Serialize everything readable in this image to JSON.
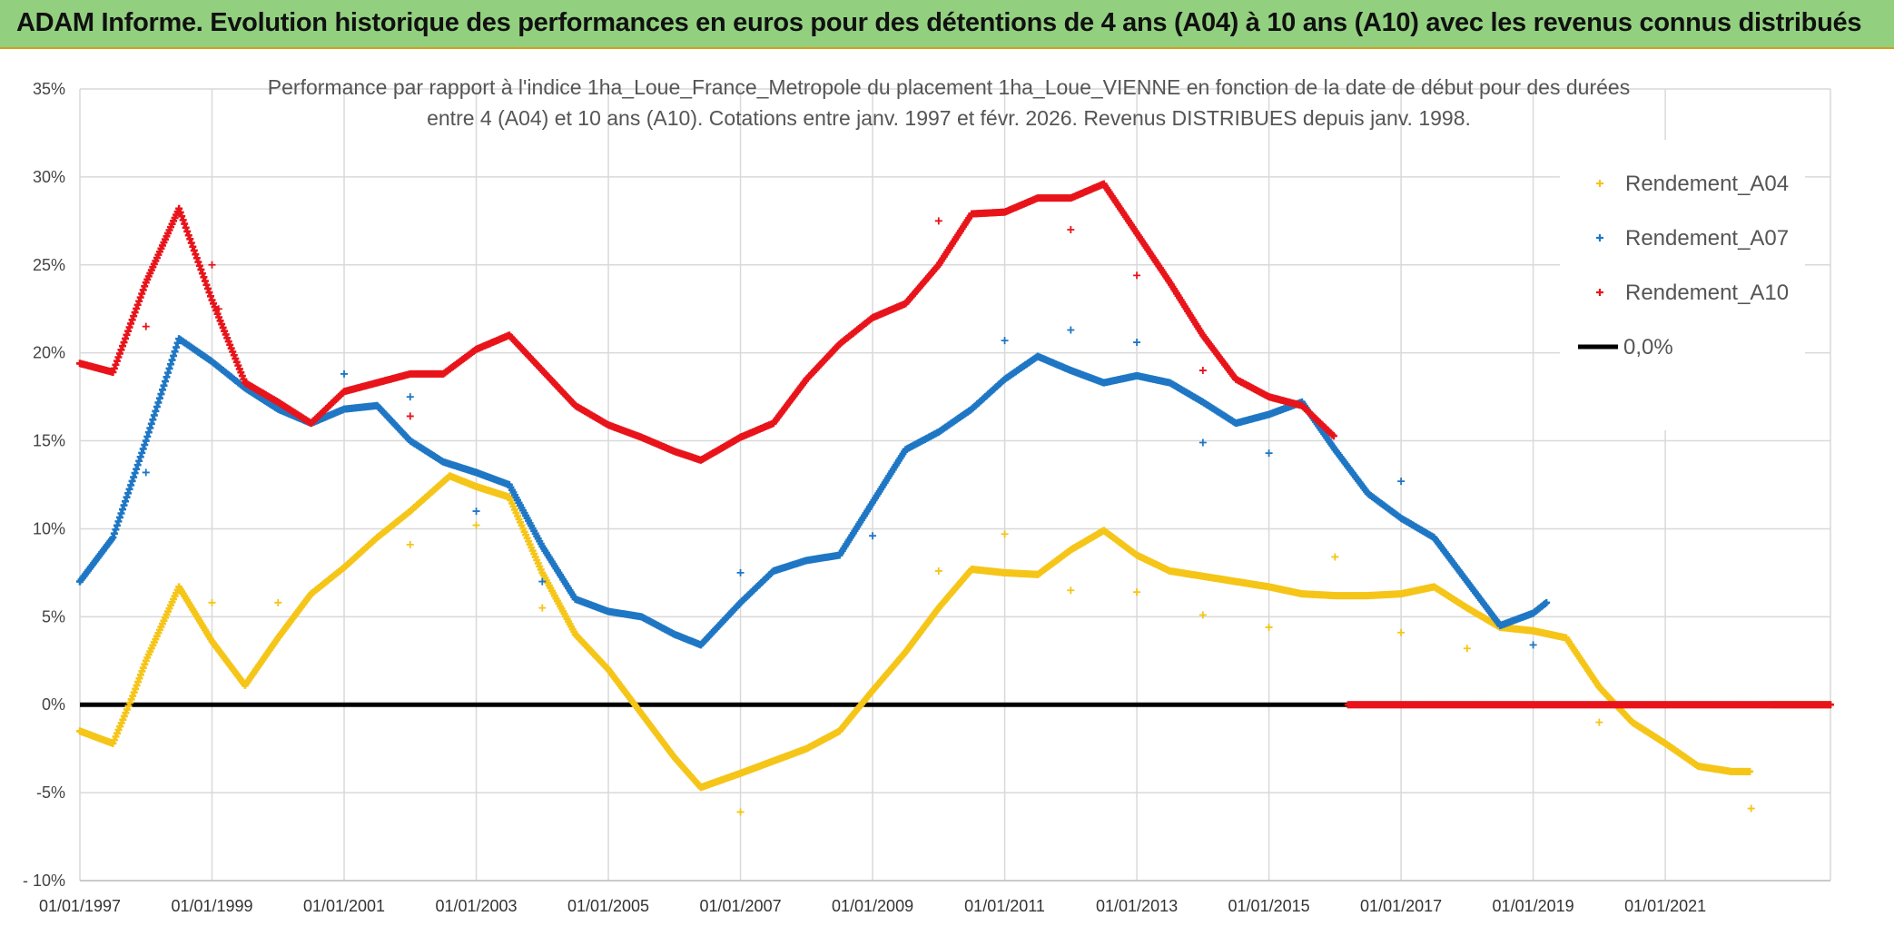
{
  "banner": {
    "title": "ADAM Informe. Evolution historique des performances en euros pour des détentions de 4 ans (A04) à 10 ans (A10) avec les revenus connus distribués"
  },
  "chart_data": {
    "type": "scatter",
    "title_line1": "Performance par rapport à l'indice 1ha_Loue_France_Metropole  du placement 1ha_Loue_VIENNE en fonction de la date de début pour des durées",
    "title_line2": "entre 4 (A04) et 10 ans (A10). Cotations entre janv. 1997 et févr. 2026. Revenus DISTRIBUES depuis janv. 1998.",
    "xlabel": "",
    "ylabel": "",
    "xlim": [
      1997.0,
      2023.5
    ],
    "ylim": [
      -10,
      35
    ],
    "y_ticks": [
      -10,
      -5,
      0,
      5,
      10,
      15,
      20,
      25,
      30,
      35
    ],
    "y_tick_labels": [
      "- 10%",
      "-5%",
      "0%",
      "5%",
      "10%",
      "15%",
      "20%",
      "25%",
      "30%",
      "35%"
    ],
    "x_ticks": [
      1997,
      1999,
      2001,
      2003,
      2005,
      2007,
      2009,
      2011,
      2013,
      2015,
      2017,
      2019,
      2021
    ],
    "x_tick_labels": [
      "01/01/1997",
      "01/01/1999",
      "01/01/2001",
      "01/01/2003",
      "01/01/2005",
      "01/01/2007",
      "01/01/2009",
      "01/01/2011",
      "01/01/2013",
      "01/01/2015",
      "01/01/2017",
      "01/01/2019",
      "01/01/2021"
    ],
    "legend_position": "top-right",
    "series": [
      {
        "name": "Rendement_A04",
        "color": "#f5c518",
        "marker": "plus",
        "points": [
          [
            1997.0,
            -1.5
          ],
          [
            1997.5,
            -2.2
          ],
          [
            1997.8,
            0.5
          ],
          [
            1998.0,
            2.5
          ],
          [
            1998.5,
            6.7
          ],
          [
            1999.0,
            3.6
          ],
          [
            1999.5,
            1.1
          ],
          [
            2000.0,
            3.8
          ],
          [
            2000.5,
            6.3
          ],
          [
            2001.0,
            7.8
          ],
          [
            2001.5,
            9.5
          ],
          [
            2002.0,
            11.0
          ],
          [
            2002.6,
            13.0
          ],
          [
            2003.0,
            12.4
          ],
          [
            2003.5,
            11.8
          ],
          [
            2004.0,
            7.5
          ],
          [
            2004.5,
            4.0
          ],
          [
            2005.0,
            2.0
          ],
          [
            2005.5,
            -0.5
          ],
          [
            2006.0,
            -3.0
          ],
          [
            2006.4,
            -4.7
          ],
          [
            2007.0,
            -3.9
          ],
          [
            2007.5,
            -3.2
          ],
          [
            2008.0,
            -2.5
          ],
          [
            2008.5,
            -1.5
          ],
          [
            2009.0,
            0.8
          ],
          [
            2009.5,
            3.0
          ],
          [
            2010.0,
            5.5
          ],
          [
            2010.5,
            7.7
          ],
          [
            2011.0,
            7.5
          ],
          [
            2011.5,
            7.4
          ],
          [
            2012.0,
            8.8
          ],
          [
            2012.5,
            9.9
          ],
          [
            2013.0,
            8.5
          ],
          [
            2013.5,
            7.6
          ],
          [
            2014.0,
            7.3
          ],
          [
            2014.5,
            7.0
          ],
          [
            2015.0,
            6.7
          ],
          [
            2015.5,
            6.3
          ],
          [
            2016.0,
            6.2
          ],
          [
            2016.5,
            6.2
          ],
          [
            2017.0,
            6.3
          ],
          [
            2017.5,
            6.7
          ],
          [
            2018.0,
            5.5
          ],
          [
            2018.5,
            4.4
          ],
          [
            2019.0,
            4.2
          ],
          [
            2019.5,
            3.8
          ],
          [
            2020.0,
            1.0
          ],
          [
            2020.5,
            -1.0
          ],
          [
            2021.0,
            -2.2
          ],
          [
            2021.5,
            -3.5
          ],
          [
            2022.0,
            -3.8
          ],
          [
            2022.3,
            -3.8
          ],
          [
            2022.6,
            0.0
          ],
          [
            2023.0,
            0.0
          ],
          [
            2023.5,
            0.0
          ]
        ]
      },
      {
        "name": "Rendement_A07",
        "color": "#1f77c4",
        "marker": "plus",
        "points": [
          [
            1997.0,
            7.0
          ],
          [
            1997.5,
            9.5
          ],
          [
            1998.0,
            15.0
          ],
          [
            1998.5,
            20.8
          ],
          [
            1999.0,
            19.5
          ],
          [
            1999.5,
            18.0
          ],
          [
            2000.0,
            16.8
          ],
          [
            2000.5,
            16.0
          ],
          [
            2001.0,
            16.8
          ],
          [
            2001.5,
            17.0
          ],
          [
            2002.0,
            15.0
          ],
          [
            2002.5,
            13.8
          ],
          [
            2003.0,
            13.2
          ],
          [
            2003.5,
            12.5
          ],
          [
            2004.0,
            9.0
          ],
          [
            2004.5,
            6.0
          ],
          [
            2005.0,
            5.3
          ],
          [
            2005.5,
            5.0
          ],
          [
            2006.0,
            4.0
          ],
          [
            2006.4,
            3.4
          ],
          [
            2007.0,
            5.8
          ],
          [
            2007.5,
            7.6
          ],
          [
            2008.0,
            8.2
          ],
          [
            2008.5,
            8.5
          ],
          [
            2009.0,
            11.5
          ],
          [
            2009.5,
            14.5
          ],
          [
            2010.0,
            15.5
          ],
          [
            2010.5,
            16.8
          ],
          [
            2011.0,
            18.5
          ],
          [
            2011.5,
            19.8
          ],
          [
            2012.0,
            19.0
          ],
          [
            2012.5,
            18.3
          ],
          [
            2013.0,
            18.7
          ],
          [
            2013.5,
            18.3
          ],
          [
            2014.0,
            17.2
          ],
          [
            2014.5,
            16.0
          ],
          [
            2015.0,
            16.5
          ],
          [
            2015.5,
            17.2
          ],
          [
            2016.0,
            14.5
          ],
          [
            2016.5,
            12.0
          ],
          [
            2017.0,
            10.6
          ],
          [
            2017.5,
            9.5
          ],
          [
            2018.0,
            7.0
          ],
          [
            2018.5,
            4.5
          ],
          [
            2019.0,
            5.2
          ],
          [
            2019.2,
            5.8
          ]
        ]
      },
      {
        "name": "Rendement_A10",
        "color": "#e8141b",
        "marker": "plus",
        "points": [
          [
            1997.0,
            19.4
          ],
          [
            1997.5,
            18.9
          ],
          [
            1998.0,
            24.0
          ],
          [
            1998.5,
            28.2
          ],
          [
            1999.0,
            23.0
          ],
          [
            1999.5,
            18.3
          ],
          [
            2000.0,
            17.2
          ],
          [
            2000.5,
            16.0
          ],
          [
            2001.0,
            17.8
          ],
          [
            2001.5,
            18.3
          ],
          [
            2002.0,
            18.8
          ],
          [
            2002.5,
            18.8
          ],
          [
            2003.0,
            20.2
          ],
          [
            2003.5,
            21.0
          ],
          [
            2004.0,
            19.0
          ],
          [
            2004.5,
            17.0
          ],
          [
            2005.0,
            15.9
          ],
          [
            2005.5,
            15.2
          ],
          [
            2006.0,
            14.4
          ],
          [
            2006.4,
            13.9
          ],
          [
            2007.0,
            15.2
          ],
          [
            2007.5,
            16.0
          ],
          [
            2008.0,
            18.5
          ],
          [
            2008.5,
            20.5
          ],
          [
            2009.0,
            22.0
          ],
          [
            2009.5,
            22.8
          ],
          [
            2010.0,
            25.0
          ],
          [
            2010.5,
            27.9
          ],
          [
            2011.0,
            28.0
          ],
          [
            2011.5,
            28.8
          ],
          [
            2012.0,
            28.8
          ],
          [
            2012.5,
            29.6
          ],
          [
            2013.0,
            26.8
          ],
          [
            2013.5,
            24.0
          ],
          [
            2014.0,
            21.0
          ],
          [
            2014.5,
            18.5
          ],
          [
            2015.0,
            17.5
          ],
          [
            2015.5,
            17.0
          ],
          [
            2016.0,
            15.2
          ],
          [
            2016.2,
            0.0
          ],
          [
            2017.0,
            0.0
          ],
          [
            2018.0,
            0.0
          ],
          [
            2019.0,
            0.0
          ],
          [
            2020.0,
            0.0
          ],
          [
            2021.0,
            0.0
          ],
          [
            2022.0,
            0.0
          ],
          [
            2023.0,
            0.0
          ],
          [
            2023.5,
            0.0
          ]
        ]
      },
      {
        "name": "0,0%",
        "color": "#000000",
        "marker": "line",
        "points": [
          [
            1997.0,
            0.0
          ],
          [
            2023.5,
            0.0
          ]
        ]
      }
    ],
    "outliers": [
      {
        "series": "Rendement_A04",
        "points": [
          [
            1999.0,
            5.8
          ],
          [
            2000.0,
            5.8
          ],
          [
            2002.0,
            9.1
          ],
          [
            2003.0,
            10.2
          ],
          [
            2004.0,
            5.5
          ],
          [
            2007.0,
            -6.1
          ],
          [
            2010.0,
            7.6
          ],
          [
            2011.0,
            9.7
          ],
          [
            2012.0,
            6.5
          ],
          [
            2013.0,
            6.4
          ],
          [
            2014.0,
            5.1
          ],
          [
            2015.0,
            4.4
          ],
          [
            2016.0,
            8.4
          ],
          [
            2017.0,
            4.1
          ],
          [
            2018.0,
            3.2
          ],
          [
            2020.0,
            -1.0
          ],
          [
            2022.3,
            -5.9
          ]
        ]
      },
      {
        "series": "Rendement_A07",
        "points": [
          [
            1998.0,
            13.2
          ],
          [
            2001.0,
            18.8
          ],
          [
            2002.0,
            17.5
          ],
          [
            2003.0,
            11.0
          ],
          [
            2004.0,
            7.0
          ],
          [
            2007.0,
            7.5
          ],
          [
            2009.0,
            9.6
          ],
          [
            2011.0,
            20.7
          ],
          [
            2012.0,
            21.3
          ],
          [
            2013.0,
            20.6
          ],
          [
            2014.0,
            14.9
          ],
          [
            2015.0,
            14.3
          ],
          [
            2017.0,
            12.7
          ],
          [
            2019.0,
            3.4
          ]
        ]
      },
      {
        "series": "Rendement_A10",
        "points": [
          [
            1998.0,
            21.5
          ],
          [
            1999.0,
            25.0
          ],
          [
            1999.1,
            22.5
          ],
          [
            2002.0,
            16.4
          ],
          [
            2010.0,
            27.5
          ],
          [
            2012.0,
            27.0
          ],
          [
            2013.0,
            24.4
          ],
          [
            2014.0,
            19.0
          ]
        ]
      }
    ]
  }
}
